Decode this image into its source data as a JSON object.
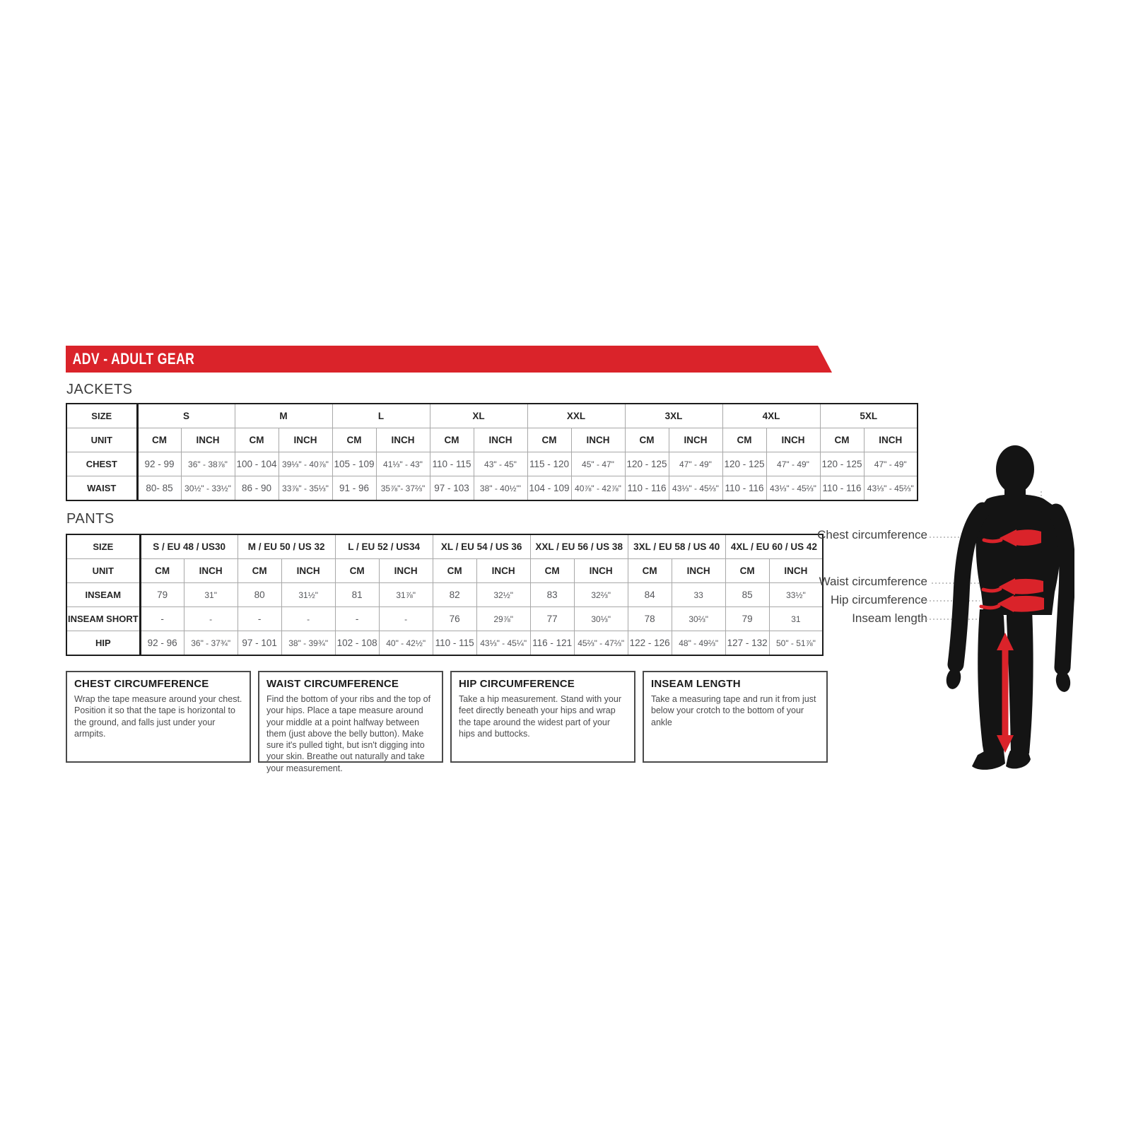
{
  "banner": {
    "title": "ADV - ADULT GEAR",
    "accent_color": "#da232a"
  },
  "jackets": {
    "heading": "JACKETS",
    "size_label": "SIZE",
    "unit_label": "UNIT",
    "cm_label": "CM",
    "inch_label": "INCH",
    "sizes": [
      "S",
      "M",
      "L",
      "XL",
      "XXL",
      "3XL",
      "4XL",
      "5XL"
    ],
    "rows": [
      {
        "label": "CHEST",
        "cells": [
          [
            "92 - 99",
            "36\" - 38⅞\""
          ],
          [
            "100 - 104",
            "39⅓\" - 40⅞\""
          ],
          [
            "105 - 109",
            "41⅓\" - 43\""
          ],
          [
            "110 - 115",
            "43\" - 45\""
          ],
          [
            "115 - 120",
            "45\" - 47\""
          ],
          [
            "120 - 125",
            "47\" - 49\""
          ],
          [
            "120 - 125",
            "47\" - 49\""
          ],
          [
            "120 - 125",
            "47\" - 49\""
          ]
        ]
      },
      {
        "label": "WAIST",
        "cells": [
          [
            "80- 85",
            "30½\" - 33½\""
          ],
          [
            "86 - 90",
            "33⅞\" - 35⅓\""
          ],
          [
            "91 - 96",
            "35⅞\"- 37⅔\""
          ],
          [
            "97 - 103",
            "38\" - 40½\"'"
          ],
          [
            "104 - 109",
            "40⅞\" - 42⅞\""
          ],
          [
            "110 - 116",
            "43⅓\" - 45⅔\""
          ],
          [
            "110 - 116",
            "43⅓\" - 45⅔\""
          ],
          [
            "110 - 116",
            "43⅓\" - 45⅔\""
          ]
        ]
      }
    ]
  },
  "pants": {
    "heading": "PANTS",
    "size_label": "SIZE",
    "unit_label": "UNIT",
    "cm_label": "CM",
    "inch_label": "INCH",
    "sizes": [
      "S / EU 48 / US30",
      "M / EU 50 / US 32",
      "L / EU 52 / US34",
      "XL / EU 54 / US 36",
      "XXL / EU 56 / US 38",
      "3XL / EU 58 / US 40",
      "4XL / EU 60 / US 42"
    ],
    "rows": [
      {
        "label": "INSEAM",
        "cells": [
          [
            "79",
            "31\""
          ],
          [
            "80",
            "31½\""
          ],
          [
            "81",
            "31⅞\""
          ],
          [
            "82",
            "32½\""
          ],
          [
            "83",
            "32⅔\""
          ],
          [
            "84",
            "33"
          ],
          [
            "85",
            "33½\""
          ]
        ]
      },
      {
        "label": "INSEAM SHORT",
        "cells": [
          [
            "-",
            "-"
          ],
          [
            "-",
            "-"
          ],
          [
            "-",
            "-"
          ],
          [
            "76",
            "29⅞\""
          ],
          [
            "77",
            "30⅓\""
          ],
          [
            "78",
            "30⅔\""
          ],
          [
            "79",
            "31"
          ]
        ]
      },
      {
        "label": "HIP",
        "cells": [
          [
            "92 - 96",
            "36\" - 37¾\""
          ],
          [
            "97 - 101",
            "38\" - 39¾\""
          ],
          [
            "102 - 108",
            "40\" - 42½\""
          ],
          [
            "110 - 115",
            "43⅓\" - 45¼\""
          ],
          [
            "116 - 121",
            "45⅔\" - 47⅔\""
          ],
          [
            "122 - 126",
            "48\" - 49⅔\""
          ],
          [
            "127 - 132",
            "50\" - 51⅞\""
          ]
        ]
      }
    ]
  },
  "info_boxes": [
    {
      "title": "CHEST CIRCUMFERENCE",
      "body": "Wrap the tape measure around your chest. Position it so that the tape is horizontal to the ground, and falls just under your armpits."
    },
    {
      "title": "WAIST CIRCUMFERENCE",
      "body": "Find the bottom of your ribs and the top of your hips. Place a tape measure around your middle at a point halfway between them (just above the belly button). Make sure it's pulled tight, but isn't digging into your skin. Breathe out naturally and take your measurement."
    },
    {
      "title": "HIP CIRCUMFERENCE",
      "body": "Take a hip measurement. Stand with your feet directly beneath your hips and wrap the tape around the widest part of your hips and buttocks."
    },
    {
      "title": "INSEAM LENGTH",
      "body": "Take a measuring tape and run it from just below your crotch to the bottom of your ankle"
    }
  ],
  "figure": {
    "chest_label": "Chest circumference",
    "waist_label": "Waist circumference",
    "hip_label": "Hip circumference",
    "inseam_label": "Inseam length",
    "silhouette_color": "#141414",
    "arrow_color": "#da232a"
  }
}
